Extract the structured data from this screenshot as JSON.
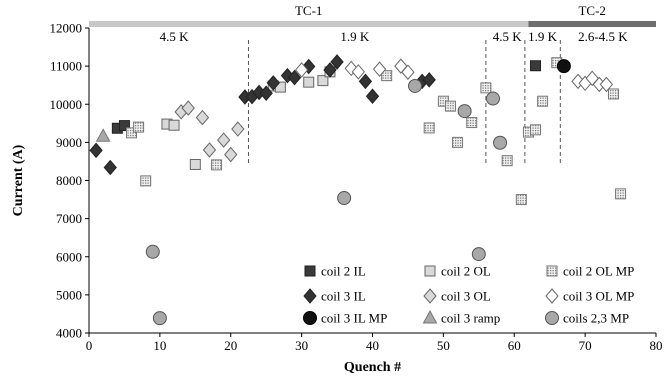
{
  "chart_data": {
    "type": "scatter",
    "xlabel": "Quench #",
    "ylabel": "Current (A)",
    "xlim": [
      0,
      80
    ],
    "ylim": [
      4000,
      12000
    ],
    "x_ticks": [
      0,
      10,
      20,
      30,
      40,
      50,
      60,
      70,
      80
    ],
    "y_ticks": [
      4000,
      5000,
      6000,
      7000,
      8000,
      9000,
      10000,
      11000,
      12000
    ],
    "grid": false,
    "legend_position": "bottom-right",
    "phase_bars": [
      {
        "label": "TC-1",
        "x_start": 0,
        "x_end": 62,
        "color": "#c8c8c8"
      },
      {
        "label": "TC-2",
        "x_start": 62,
        "x_end": 80,
        "color": "#6e6e6e"
      }
    ],
    "dividers": [
      22.5,
      56,
      61.5,
      66.5
    ],
    "regions": [
      {
        "label": "4.5 K",
        "x": 12
      },
      {
        "label": "1.9 K",
        "x": 37.5
      },
      {
        "label": "4.5 K",
        "x": 59
      },
      {
        "label": "1.9 K",
        "x": 64
      },
      {
        "label": "2.6-4.5 K",
        "x": 72.5
      }
    ],
    "series": [
      {
        "name": "coil 2 IL",
        "marker": "square",
        "fill": "#3a3a3a",
        "stroke": "#222222",
        "points": [
          [
            4,
            9370
          ],
          [
            5,
            9440
          ],
          [
            63,
            11010
          ]
        ]
      },
      {
        "name": "coil 2 OL",
        "marker": "square",
        "fill": "#d9d9d9",
        "stroke": "#666666",
        "points": [
          [
            11,
            9480
          ],
          [
            12,
            9450
          ],
          [
            15,
            8420
          ],
          [
            26,
            10480
          ],
          [
            27,
            10450
          ],
          [
            31,
            10580
          ],
          [
            33,
            10620
          ],
          [
            34,
            10850
          ]
        ]
      },
      {
        "name": "coil 2 OL MP",
        "marker": "square-dotted",
        "fill": "#e8e8e8",
        "stroke": "#777777",
        "points": [
          [
            6,
            9250
          ],
          [
            7,
            9400
          ],
          [
            8,
            7990
          ],
          [
            18,
            8410
          ],
          [
            42,
            10750
          ],
          [
            48,
            9380
          ],
          [
            50,
            10080
          ],
          [
            51,
            9950
          ],
          [
            52,
            9000
          ],
          [
            54,
            9520
          ],
          [
            56,
            10430
          ],
          [
            59,
            8520
          ],
          [
            61,
            7500
          ],
          [
            62,
            9270
          ],
          [
            63,
            9330
          ],
          [
            64,
            10080
          ],
          [
            66,
            11090
          ],
          [
            74,
            10270
          ],
          [
            75,
            7650
          ]
        ]
      },
      {
        "name": "coil 3 IL",
        "marker": "diamond",
        "fill": "#333333",
        "stroke": "#222222",
        "points": [
          [
            1,
            8790
          ],
          [
            3,
            8340
          ],
          [
            22,
            10190
          ],
          [
            23,
            10200
          ],
          [
            24,
            10310
          ],
          [
            25,
            10290
          ],
          [
            26,
            10560
          ],
          [
            28,
            10750
          ],
          [
            29,
            10700
          ],
          [
            31,
            10990
          ],
          [
            34,
            10900
          ],
          [
            35,
            11110
          ],
          [
            39,
            10600
          ],
          [
            40,
            10210
          ],
          [
            47,
            10600
          ],
          [
            48,
            10640
          ]
        ]
      },
      {
        "name": "coil 3 OL",
        "marker": "diamond",
        "fill": "#d9d9d9",
        "stroke": "#666666",
        "points": [
          [
            13,
            9800
          ],
          [
            14,
            9900
          ],
          [
            16,
            9650
          ],
          [
            17,
            8800
          ],
          [
            19,
            9060
          ],
          [
            20,
            8680
          ],
          [
            21,
            9350
          ]
        ]
      },
      {
        "name": "coil 3 OL MP",
        "marker": "diamond",
        "fill": "#ffffff",
        "stroke": "#666666",
        "points": [
          [
            30,
            10900
          ],
          [
            37,
            10940
          ],
          [
            38,
            10850
          ],
          [
            41,
            10920
          ],
          [
            44,
            11000
          ],
          [
            45,
            10840
          ],
          [
            69,
            10600
          ],
          [
            70,
            10550
          ],
          [
            71,
            10680
          ],
          [
            72,
            10520
          ],
          [
            73,
            10520
          ]
        ]
      },
      {
        "name": "coil 3 IL MP",
        "marker": "circle",
        "fill": "#111111",
        "stroke": "#000000",
        "points": [
          [
            67,
            11000
          ]
        ]
      },
      {
        "name": "coil 3 ramp",
        "marker": "triangle",
        "fill": "#a8a8a8",
        "stroke": "#777777",
        "points": [
          [
            2,
            9160
          ]
        ]
      },
      {
        "name": "coils 2,3 MP",
        "marker": "circle",
        "fill": "#a8a8a8",
        "stroke": "#555555",
        "points": [
          [
            9,
            6130
          ],
          [
            10,
            4390
          ],
          [
            36,
            7540
          ],
          [
            46,
            10480
          ],
          [
            53,
            9820
          ],
          [
            55,
            6070
          ],
          [
            57,
            10150
          ],
          [
            58,
            8990
          ]
        ]
      }
    ]
  }
}
